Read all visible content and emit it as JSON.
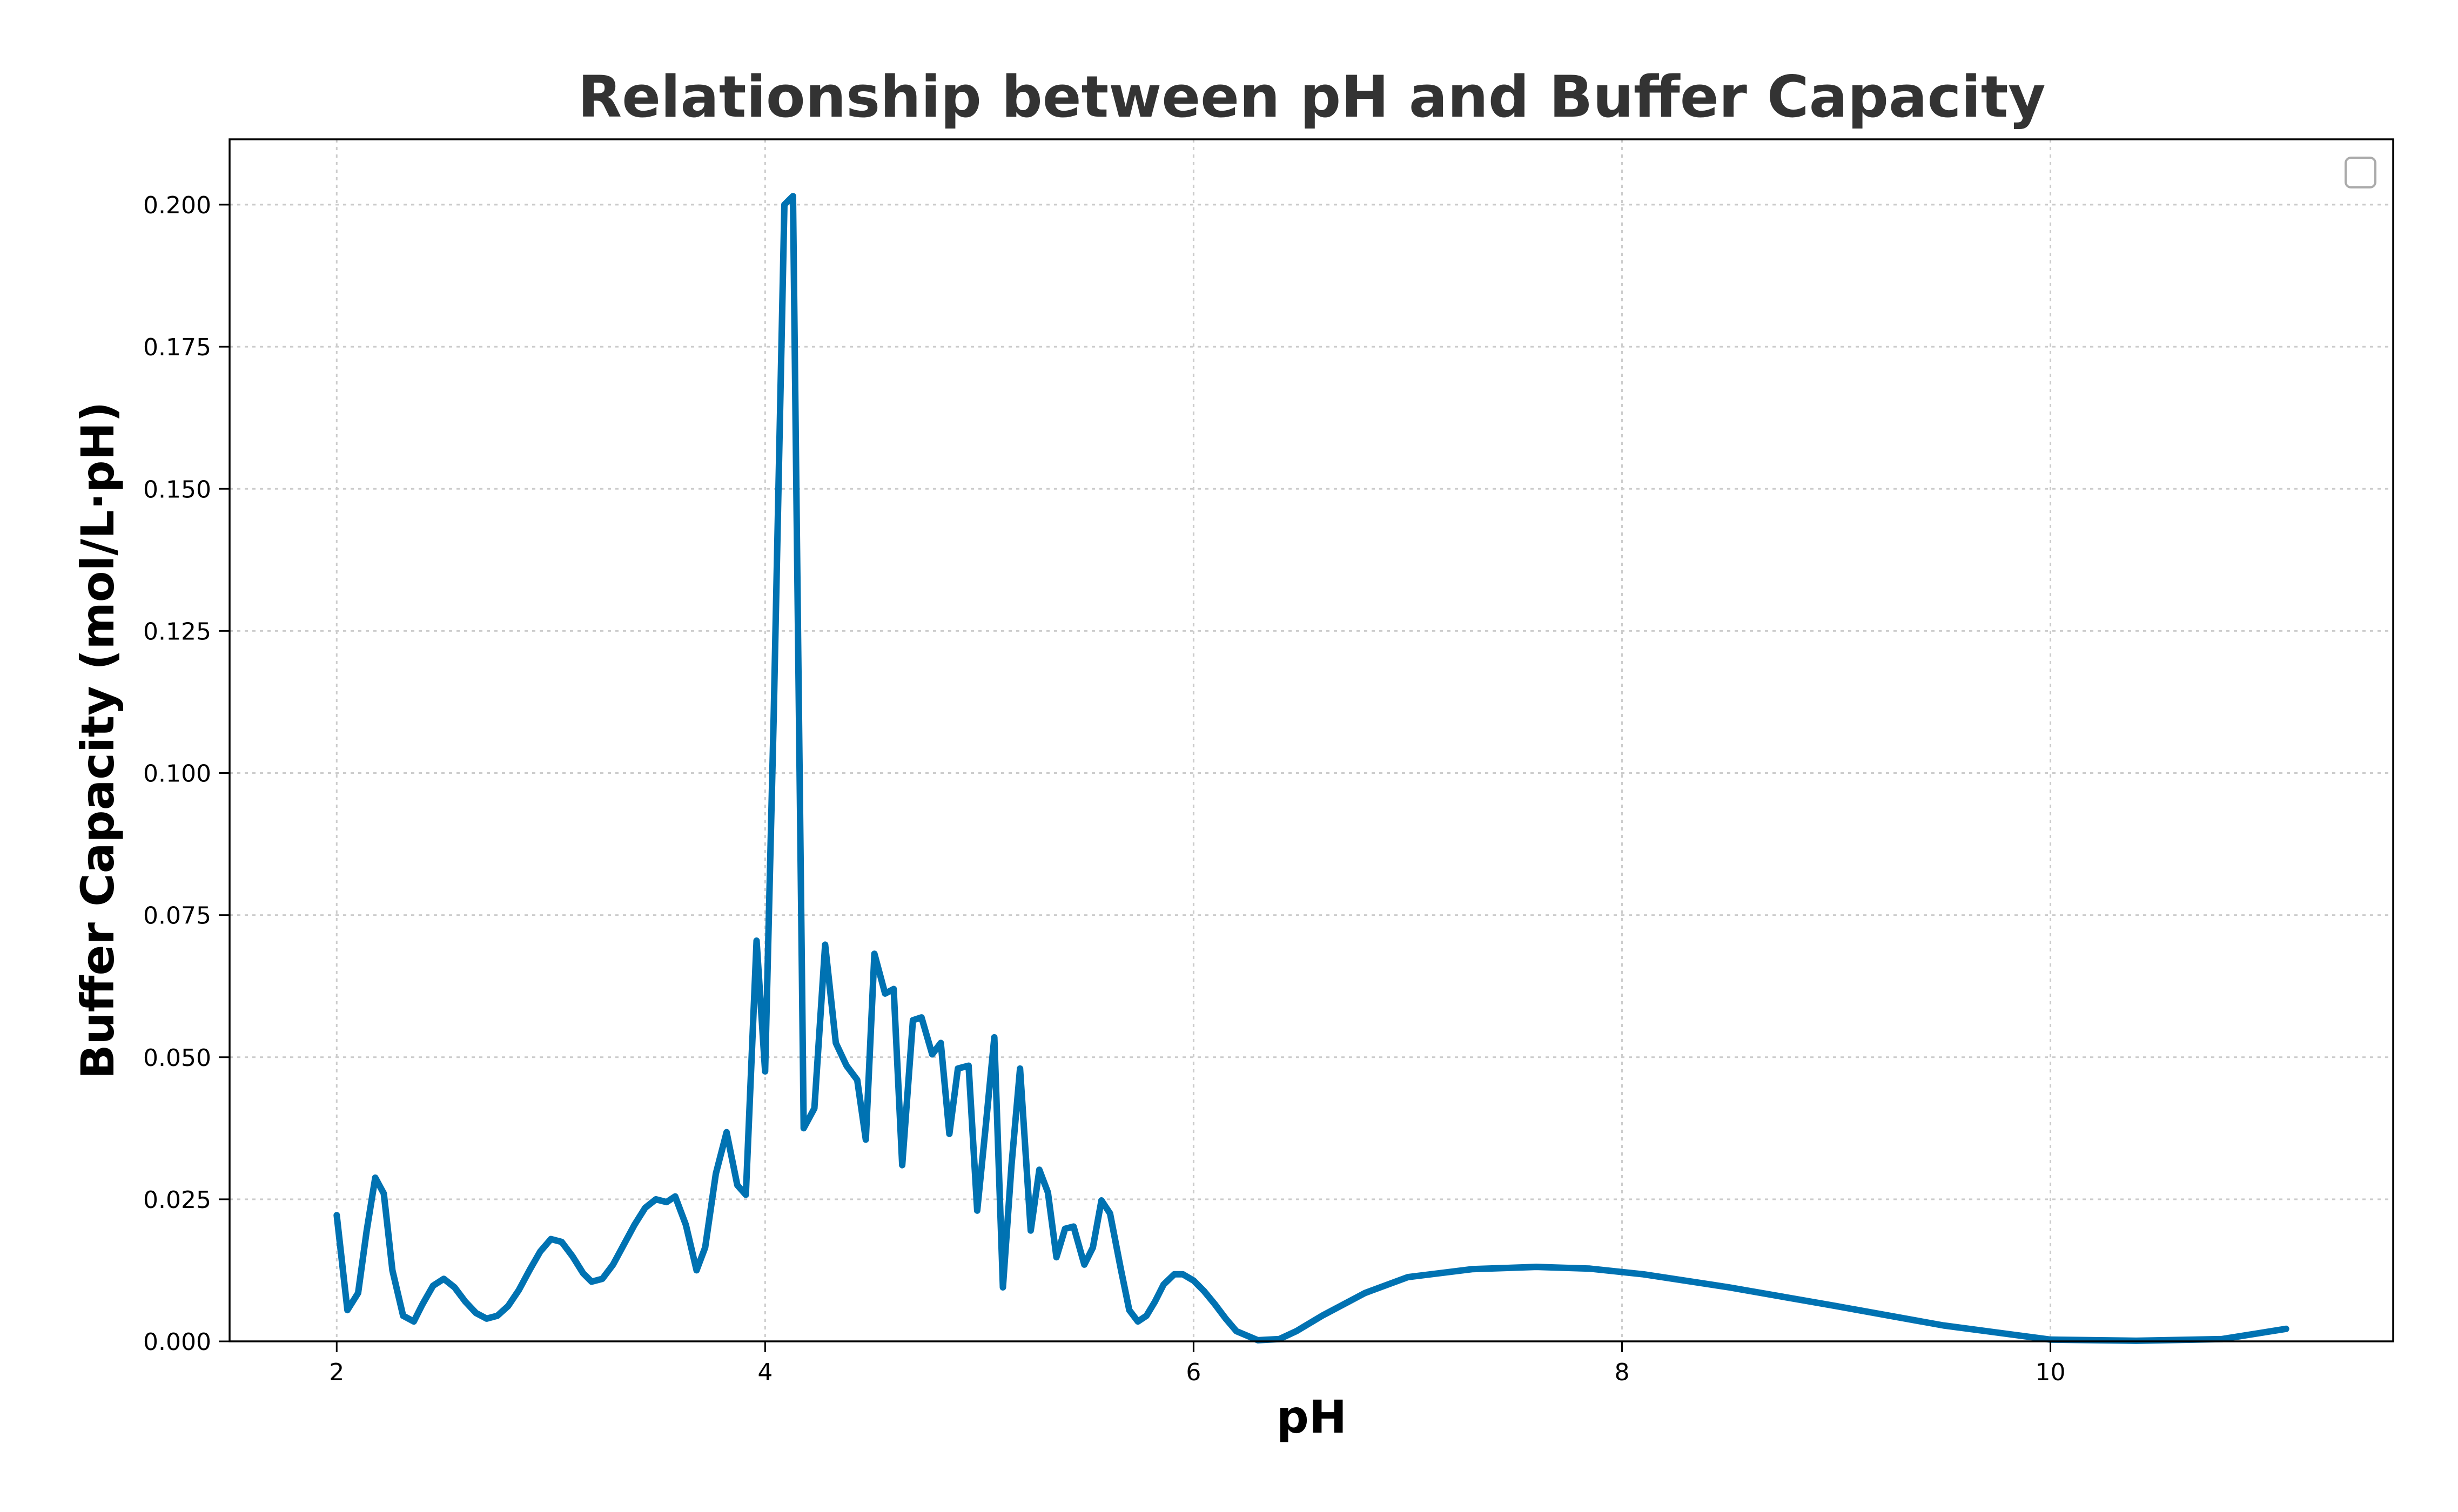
{
  "chart_data": {
    "type": "line",
    "title": "Relationship between pH and Buffer Capacity",
    "xlabel": "pH",
    "ylabel": "Buffer Capacity (mol/L·pH)",
    "xlim": [
      1.5,
      11.6
    ],
    "ylim": [
      0,
      0.2115
    ],
    "xticks": [
      2,
      4,
      6,
      8,
      10
    ],
    "xtick_labels": [
      "2",
      "4",
      "6",
      "8",
      "10"
    ],
    "yticks": [
      0,
      0.025,
      0.05,
      0.075,
      0.1,
      0.125,
      0.15,
      0.175,
      0.2
    ],
    "ytick_labels": [
      "0.000",
      "0.025",
      "0.050",
      "0.075",
      "0.100",
      "0.125",
      "0.150",
      "0.175",
      "0.200"
    ],
    "grid": true,
    "legend": "top-right",
    "color": "#0072b2",
    "series": [
      {
        "x": [
          2.0,
          2.05,
          2.1,
          2.14,
          2.18,
          2.22,
          2.26,
          2.31,
          2.36,
          2.4,
          2.45,
          2.5,
          2.55,
          2.6,
          2.65,
          2.7,
          2.75,
          2.8,
          2.85,
          2.9,
          2.95,
          3.0,
          3.05,
          3.1,
          3.15,
          3.19,
          3.24,
          3.29,
          3.34,
          3.39,
          3.44,
          3.49,
          3.54,
          3.58,
          3.63,
          3.68,
          3.72,
          3.77,
          3.82,
          3.87,
          3.91,
          3.96,
          4.0,
          4.04,
          4.09,
          4.13,
          4.18,
          4.23,
          4.28,
          4.33,
          4.38,
          4.43,
          4.47,
          4.51,
          4.56,
          4.6,
          4.64,
          4.69,
          4.73,
          4.78,
          4.82,
          4.86,
          4.9,
          4.95,
          4.99,
          5.03,
          5.07,
          5.11,
          5.15,
          5.19,
          5.24,
          5.28,
          5.32,
          5.36,
          5.4,
          5.44,
          5.49,
          5.53,
          5.57,
          5.61,
          5.66,
          5.7,
          5.74,
          5.78,
          5.82,
          5.86,
          5.91,
          5.95,
          6.0,
          6.05,
          6.1,
          6.15,
          6.2,
          6.3,
          6.4,
          6.48,
          6.6,
          6.8,
          7.0,
          7.3,
          7.6,
          7.85,
          8.1,
          8.5,
          9.0,
          9.5,
          10.0,
          10.4,
          10.8,
          11.1
        ],
        "y": [
          0.0222,
          0.0055,
          0.0085,
          0.0195,
          0.0288,
          0.026,
          0.0125,
          0.0045,
          0.0035,
          0.0065,
          0.0098,
          0.011,
          0.0095,
          0.007,
          0.005,
          0.004,
          0.0045,
          0.0062,
          0.009,
          0.0125,
          0.0158,
          0.018,
          0.0175,
          0.015,
          0.012,
          0.0105,
          0.011,
          0.0135,
          0.017,
          0.0205,
          0.0235,
          0.025,
          0.0245,
          0.0255,
          0.0205,
          0.0125,
          0.0165,
          0.0295,
          0.0368,
          0.0275,
          0.0258,
          0.0705,
          0.0475,
          0.11,
          0.2,
          0.2015,
          0.0375,
          0.041,
          0.0698,
          0.0525,
          0.0485,
          0.046,
          0.0355,
          0.0682,
          0.0612,
          0.062,
          0.031,
          0.0565,
          0.057,
          0.0505,
          0.0525,
          0.0365,
          0.048,
          0.0485,
          0.023,
          0.038,
          0.0535,
          0.0095,
          0.031,
          0.048,
          0.0195,
          0.0302,
          0.0262,
          0.0148,
          0.0198,
          0.0202,
          0.0135,
          0.0165,
          0.0248,
          0.0225,
          0.0128,
          0.0055,
          0.0035,
          0.0045,
          0.007,
          0.01,
          0.0118,
          0.0118,
          0.0107,
          0.0088,
          0.0065,
          0.004,
          0.0018,
          0.0002,
          0.0004,
          0.0018,
          0.0045,
          0.0085,
          0.0113,
          0.0127,
          0.0131,
          0.0128,
          0.0118,
          0.0095,
          0.0062,
          0.0028,
          0.0003,
          0.0001,
          0.0004,
          0.0022
        ]
      }
    ]
  }
}
